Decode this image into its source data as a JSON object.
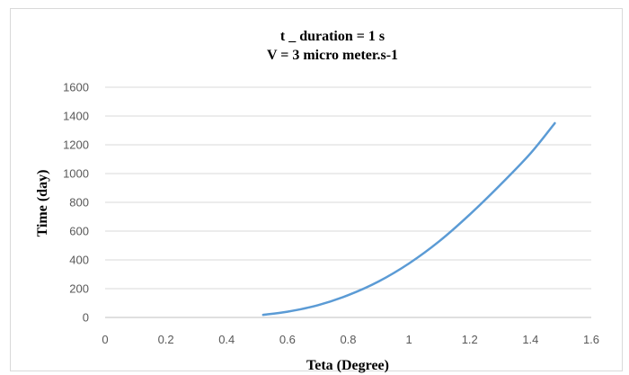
{
  "chart_data": {
    "type": "line",
    "title": "t _ duration = 1 s",
    "subtitle": "V = 3 micro meter.s-1",
    "xlabel": "Teta (Degree)",
    "ylabel": "Time (day)",
    "xlim": [
      0,
      1.6
    ],
    "ylim": [
      0,
      1600
    ],
    "xticks": [
      "0",
      "0.2",
      "0.4",
      "0.6",
      "0.8",
      "1",
      "1.2",
      "1.4",
      "1.6"
    ],
    "yticks": [
      "0",
      "200",
      "400",
      "600",
      "800",
      "1000",
      "1200",
      "1400",
      "1600"
    ],
    "grid": true,
    "legend": "none",
    "series": [
      {
        "color": "#5b9bd5",
        "x": [
          0.52,
          0.6,
          0.7,
          0.8,
          0.9,
          1.0,
          1.1,
          1.2,
          1.3,
          1.4,
          1.48
        ],
        "y": [
          18,
          40,
          85,
          155,
          250,
          375,
          530,
          715,
          920,
          1140,
          1350
        ]
      }
    ]
  }
}
